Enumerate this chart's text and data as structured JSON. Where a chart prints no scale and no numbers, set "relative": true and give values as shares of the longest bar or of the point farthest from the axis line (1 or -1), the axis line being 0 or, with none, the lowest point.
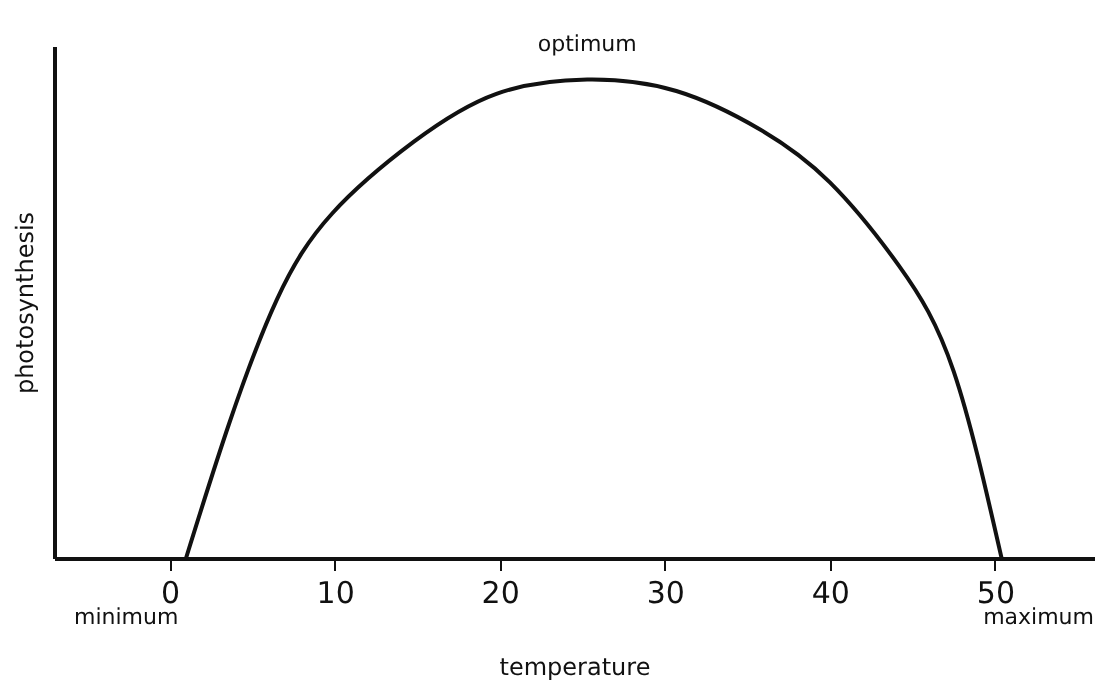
{
  "chart_data": {
    "type": "line",
    "relative": true,
    "xlabel": "temperature",
    "ylabel": "photosynthesis",
    "xlim": [
      -7,
      56
    ],
    "xticks": [
      0,
      10,
      20,
      30,
      40,
      50
    ],
    "grid": false,
    "marker": "none",
    "line_style": "solid",
    "x": [
      1.0,
      3.6,
      6.5,
      9.85,
      14.8,
      19.8,
      25.3,
      30.7,
      35.8,
      40,
      44.2,
      47.5,
      50.4
    ],
    "series": [
      {
        "color": "#111111",
        "values": [
          0,
          0.28,
          0.54,
          0.72,
          0.87,
          0.97,
          1,
          0.976,
          0.895,
          0.785,
          0.61,
          0.39,
          0
        ]
      }
    ],
    "annotations": [
      {
        "text": "optimum",
        "x": 25.3,
        "y": 1
      },
      "minimum",
      "maximum"
    ]
  }
}
